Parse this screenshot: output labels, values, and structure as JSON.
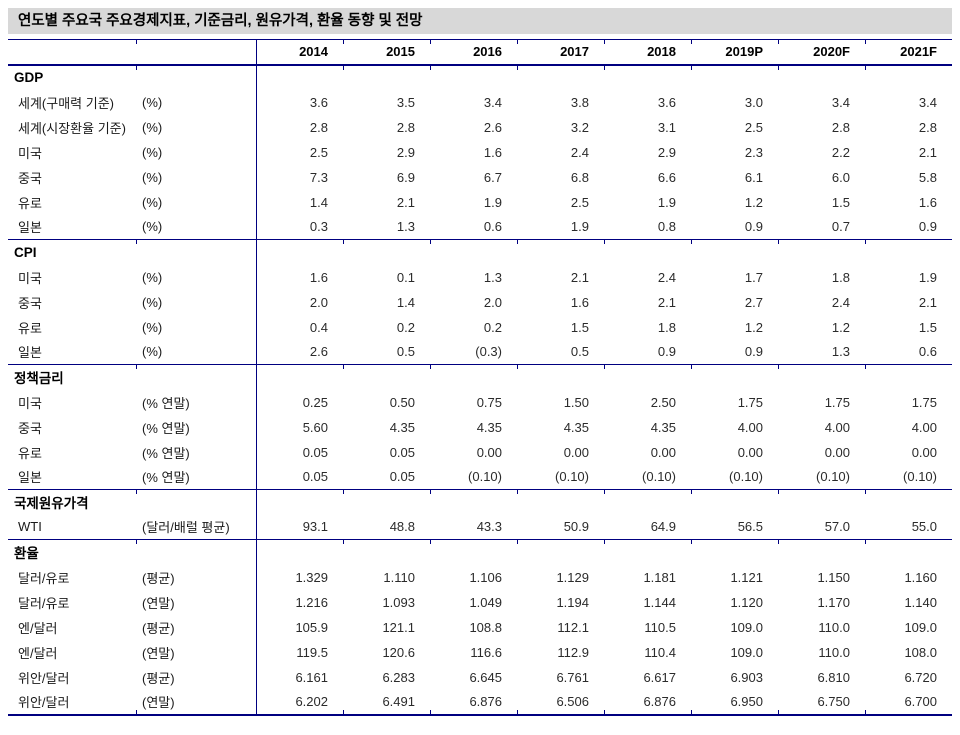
{
  "colors": {
    "rule_line": "#000080",
    "title_bar_bg": "#d8d8d8",
    "text": "#000000"
  },
  "chart_data": {
    "type": "table",
    "title": "연도별 주요국 주요경제지표, 기준금리, 원유가격, 환율 동향 및 전망",
    "years": [
      "2014",
      "2015",
      "2016",
      "2017",
      "2018",
      "2019P",
      "2020F",
      "2021F"
    ],
    "sections": [
      {
        "name": "GDP",
        "rows": [
          {
            "label": "세계(구매력 기준)",
            "unit": "(%)",
            "values": [
              "3.6",
              "3.5",
              "3.4",
              "3.8",
              "3.6",
              "3.0",
              "3.4",
              "3.4"
            ]
          },
          {
            "label": "세계(시장환율 기준)",
            "unit": "(%)",
            "values": [
              "2.8",
              "2.8",
              "2.6",
              "3.2",
              "3.1",
              "2.5",
              "2.8",
              "2.8"
            ]
          },
          {
            "label": "미국",
            "unit": "(%)",
            "values": [
              "2.5",
              "2.9",
              "1.6",
              "2.4",
              "2.9",
              "2.3",
              "2.2",
              "2.1"
            ]
          },
          {
            "label": "중국",
            "unit": "(%)",
            "values": [
              "7.3",
              "6.9",
              "6.7",
              "6.8",
              "6.6",
              "6.1",
              "6.0",
              "5.8"
            ]
          },
          {
            "label": "유로",
            "unit": "(%)",
            "values": [
              "1.4",
              "2.1",
              "1.9",
              "2.5",
              "1.9",
              "1.2",
              "1.5",
              "1.6"
            ]
          },
          {
            "label": "일본",
            "unit": "(%)",
            "values": [
              "0.3",
              "1.3",
              "0.6",
              "1.9",
              "0.8",
              "0.9",
              "0.7",
              "0.9"
            ]
          }
        ]
      },
      {
        "name": "CPI",
        "rows": [
          {
            "label": "미국",
            "unit": "(%)",
            "values": [
              "1.6",
              "0.1",
              "1.3",
              "2.1",
              "2.4",
              "1.7",
              "1.8",
              "1.9"
            ]
          },
          {
            "label": "중국",
            "unit": "(%)",
            "values": [
              "2.0",
              "1.4",
              "2.0",
              "1.6",
              "2.1",
              "2.7",
              "2.4",
              "2.1"
            ]
          },
          {
            "label": "유로",
            "unit": "(%)",
            "values": [
              "0.4",
              "0.2",
              "0.2",
              "1.5",
              "1.8",
              "1.2",
              "1.2",
              "1.5"
            ]
          },
          {
            "label": "일본",
            "unit": "(%)",
            "values": [
              "2.6",
              "0.5",
              "(0.3)",
              "0.5",
              "0.9",
              "0.9",
              "1.3",
              "0.6"
            ]
          }
        ]
      },
      {
        "name": "정책금리",
        "rows": [
          {
            "label": "미국",
            "unit": "(% 연말)",
            "values": [
              "0.25",
              "0.50",
              "0.75",
              "1.50",
              "2.50",
              "1.75",
              "1.75",
              "1.75"
            ]
          },
          {
            "label": "중국",
            "unit": "(% 연말)",
            "values": [
              "5.60",
              "4.35",
              "4.35",
              "4.35",
              "4.35",
              "4.00",
              "4.00",
              "4.00"
            ]
          },
          {
            "label": "유로",
            "unit": "(% 연말)",
            "values": [
              "0.05",
              "0.05",
              "0.00",
              "0.00",
              "0.00",
              "0.00",
              "0.00",
              "0.00"
            ]
          },
          {
            "label": "일본",
            "unit": "(% 연말)",
            "values": [
              "0.05",
              "0.05",
              "(0.10)",
              "(0.10)",
              "(0.10)",
              "(0.10)",
              "(0.10)",
              "(0.10)"
            ]
          }
        ]
      },
      {
        "name": "국제원유가격",
        "rows": [
          {
            "label": "WTI",
            "unit": "(달러/배럴 평균)",
            "values": [
              "93.1",
              "48.8",
              "43.3",
              "50.9",
              "64.9",
              "56.5",
              "57.0",
              "55.0"
            ]
          }
        ]
      },
      {
        "name": "환율",
        "rows": [
          {
            "label": "달러/유로",
            "unit": "(평균)",
            "values": [
              "1.329",
              "1.110",
              "1.106",
              "1.129",
              "1.181",
              "1.121",
              "1.150",
              "1.160"
            ]
          },
          {
            "label": "달러/유로",
            "unit": "(연말)",
            "values": [
              "1.216",
              "1.093",
              "1.049",
              "1.194",
              "1.144",
              "1.120",
              "1.170",
              "1.140"
            ]
          },
          {
            "label": "엔/달러",
            "unit": "(평균)",
            "values": [
              "105.9",
              "121.1",
              "108.8",
              "112.1",
              "110.5",
              "109.0",
              "110.0",
              "109.0"
            ]
          },
          {
            "label": "엔/달러",
            "unit": "(연말)",
            "values": [
              "119.5",
              "120.6",
              "116.6",
              "112.9",
              "110.4",
              "109.0",
              "110.0",
              "108.0"
            ]
          },
          {
            "label": "위안/달러",
            "unit": "(평균)",
            "values": [
              "6.161",
              "6.283",
              "6.645",
              "6.761",
              "6.617",
              "6.903",
              "6.810",
              "6.720"
            ]
          },
          {
            "label": "위안/달러",
            "unit": "(연말)",
            "values": [
              "6.202",
              "6.491",
              "6.876",
              "6.506",
              "6.876",
              "6.950",
              "6.750",
              "6.700"
            ]
          }
        ]
      }
    ]
  }
}
